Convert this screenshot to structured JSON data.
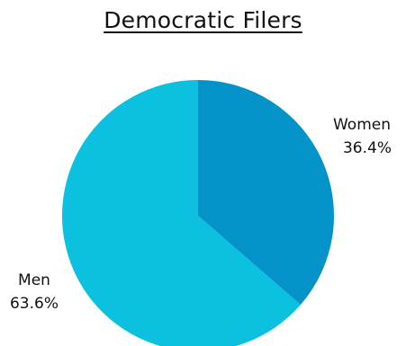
{
  "chart_data": {
    "type": "pie",
    "title": "Democratic Filers",
    "slices": [
      {
        "label": "Women",
        "pct_text": "36.4%",
        "value": 36.4,
        "color": "#0493c8"
      },
      {
        "label": "Men",
        "pct_text": "63.6%",
        "value": 63.6,
        "color": "#0cc0df"
      }
    ]
  }
}
